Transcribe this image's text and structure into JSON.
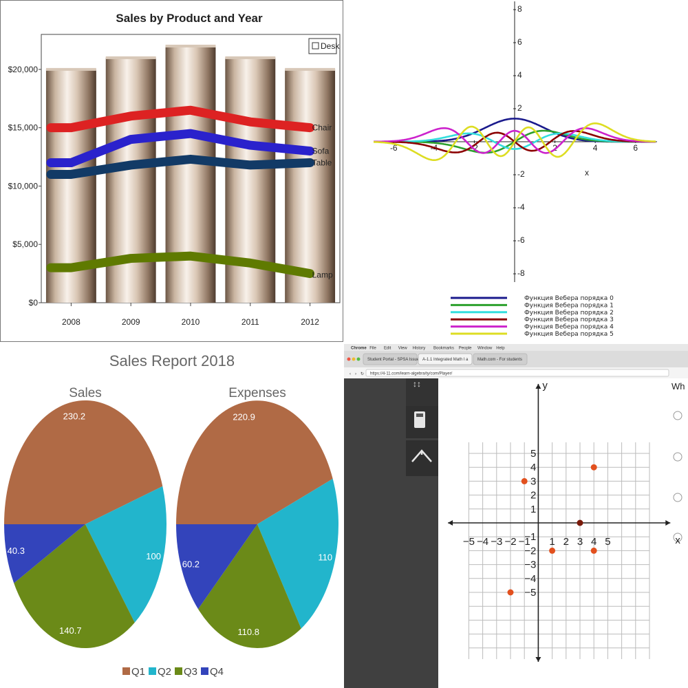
{
  "chart_data": [
    {
      "type": "bar",
      "title": "Sales by Product and Year",
      "categories": [
        "2008",
        "2009",
        "2010",
        "2011",
        "2012"
      ],
      "ylim": [
        0,
        23000
      ],
      "y_ticks": [
        "$0",
        "$5,000",
        "$10,000",
        "$15,000",
        "$20,000"
      ],
      "y_tick_values": [
        0,
        5000,
        10000,
        15000,
        20000
      ],
      "legend": {
        "placement": "top-right",
        "entries": [
          "Desk"
        ]
      },
      "series": [
        {
          "name": "Desk",
          "kind": "bar",
          "color": "#c8b29e",
          "values": [
            20000,
            21000,
            22000,
            21000,
            20000
          ]
        },
        {
          "name": "Chair",
          "kind": "line",
          "color": "#dd2222",
          "values": [
            15000,
            16000,
            16500,
            15500,
            15000
          ]
        },
        {
          "name": "Sofa",
          "kind": "line",
          "color": "#2a22cc",
          "values": [
            12000,
            14000,
            14500,
            13500,
            13000
          ]
        },
        {
          "name": "Table",
          "kind": "line",
          "color": "#123a66",
          "values": [
            11000,
            11800,
            12300,
            11800,
            12000
          ]
        },
        {
          "name": "Lamp",
          "kind": "line",
          "color": "#5f7a00",
          "values": [
            3000,
            3800,
            4000,
            3400,
            2500
          ]
        }
      ]
    },
    {
      "type": "line",
      "xlabel": "x",
      "xlim": [
        -7,
        7
      ],
      "ylim": [
        -8.5,
        8.5
      ],
      "x_ticks": [
        -6,
        -4,
        -2,
        2,
        4,
        6
      ],
      "y_ticks": [
        -8,
        -6,
        -4,
        -2,
        2,
        4,
        6,
        8
      ],
      "series": [
        {
          "name": "Функция Вебера порядка 0",
          "order": 0,
          "color": "#1a1a8c"
        },
        {
          "name": "Функция Вебера порядка 1",
          "order": 1,
          "color": "#2ca02c"
        },
        {
          "name": "Функция Вебера порядка 2",
          "order": 2,
          "color": "#33dddd"
        },
        {
          "name": "Функция Вебера порядка 3",
          "order": 3,
          "color": "#8b0000"
        },
        {
          "name": "Функция Вебера порядка 4",
          "order": 4,
          "color": "#cc22cc"
        },
        {
          "name": "Функция Вебера порядка 5",
          "order": 5,
          "color": "#dddd22"
        }
      ]
    },
    {
      "type": "pie",
      "title": "Sales Report 2018",
      "categories": [
        "Q1",
        "Q2",
        "Q3",
        "Q4"
      ],
      "colors": [
        "#b06a45",
        "#22b5cc",
        "#6b8a18",
        "#3344bb"
      ],
      "series": [
        {
          "name": "Sales",
          "values": [
            230.2,
            100,
            140.7,
            40.3
          ],
          "labels": [
            "230.2",
            "100",
            "140.7",
            "40.3"
          ]
        },
        {
          "name": "Expenses",
          "values": [
            220.9,
            110,
            110.8,
            60.2
          ],
          "labels": [
            "220.9",
            "110",
            "110.8",
            "60.2"
          ]
        }
      ],
      "legend": {
        "placement": "bottom"
      }
    },
    {
      "type": "scatter",
      "xlabel": "x",
      "ylabel": "y",
      "xlim": [
        -5,
        5
      ],
      "ylim": [
        -5,
        5
      ],
      "x_ticks": [
        "−5",
        "−4",
        "−3",
        "−2",
        "−1",
        "1",
        "2",
        "3",
        "4",
        "5"
      ],
      "x_tick_values": [
        -5,
        -4,
        -3,
        -2,
        -1,
        1,
        2,
        3,
        4,
        5
      ],
      "y_ticks": [
        "5",
        "4",
        "3",
        "2",
        "1",
        "−1",
        "−2",
        "−3",
        "−4",
        "−5"
      ],
      "y_tick_values": [
        5,
        4,
        3,
        2,
        1,
        -1,
        -2,
        -3,
        -4,
        -5
      ],
      "points": [
        {
          "x": 4,
          "y": 4,
          "color": "#e2501e"
        },
        {
          "x": -1,
          "y": 3,
          "color": "#e2501e"
        },
        {
          "x": 1,
          "y": -2,
          "color": "#e2501e"
        },
        {
          "x": 4,
          "y": -2,
          "color": "#e2501e"
        },
        {
          "x": -2,
          "y": -5,
          "color": "#e2501e"
        },
        {
          "x": 3,
          "y": 0,
          "color": "#7a1a0a"
        }
      ]
    }
  ],
  "browser": {
    "menu_items": [
      "Chrome",
      "File",
      "Edit",
      "View",
      "History",
      "Bookmarks",
      "People",
      "Window",
      "Help"
    ],
    "tabs": [
      "Student Portal - SPSA Issue",
      "A-1.1 Integrated Math I a",
      "Math.com - For students"
    ],
    "url": "https://4-11.com/learn-algebra/ty/com/Player/",
    "side_question_text": "Wh"
  }
}
